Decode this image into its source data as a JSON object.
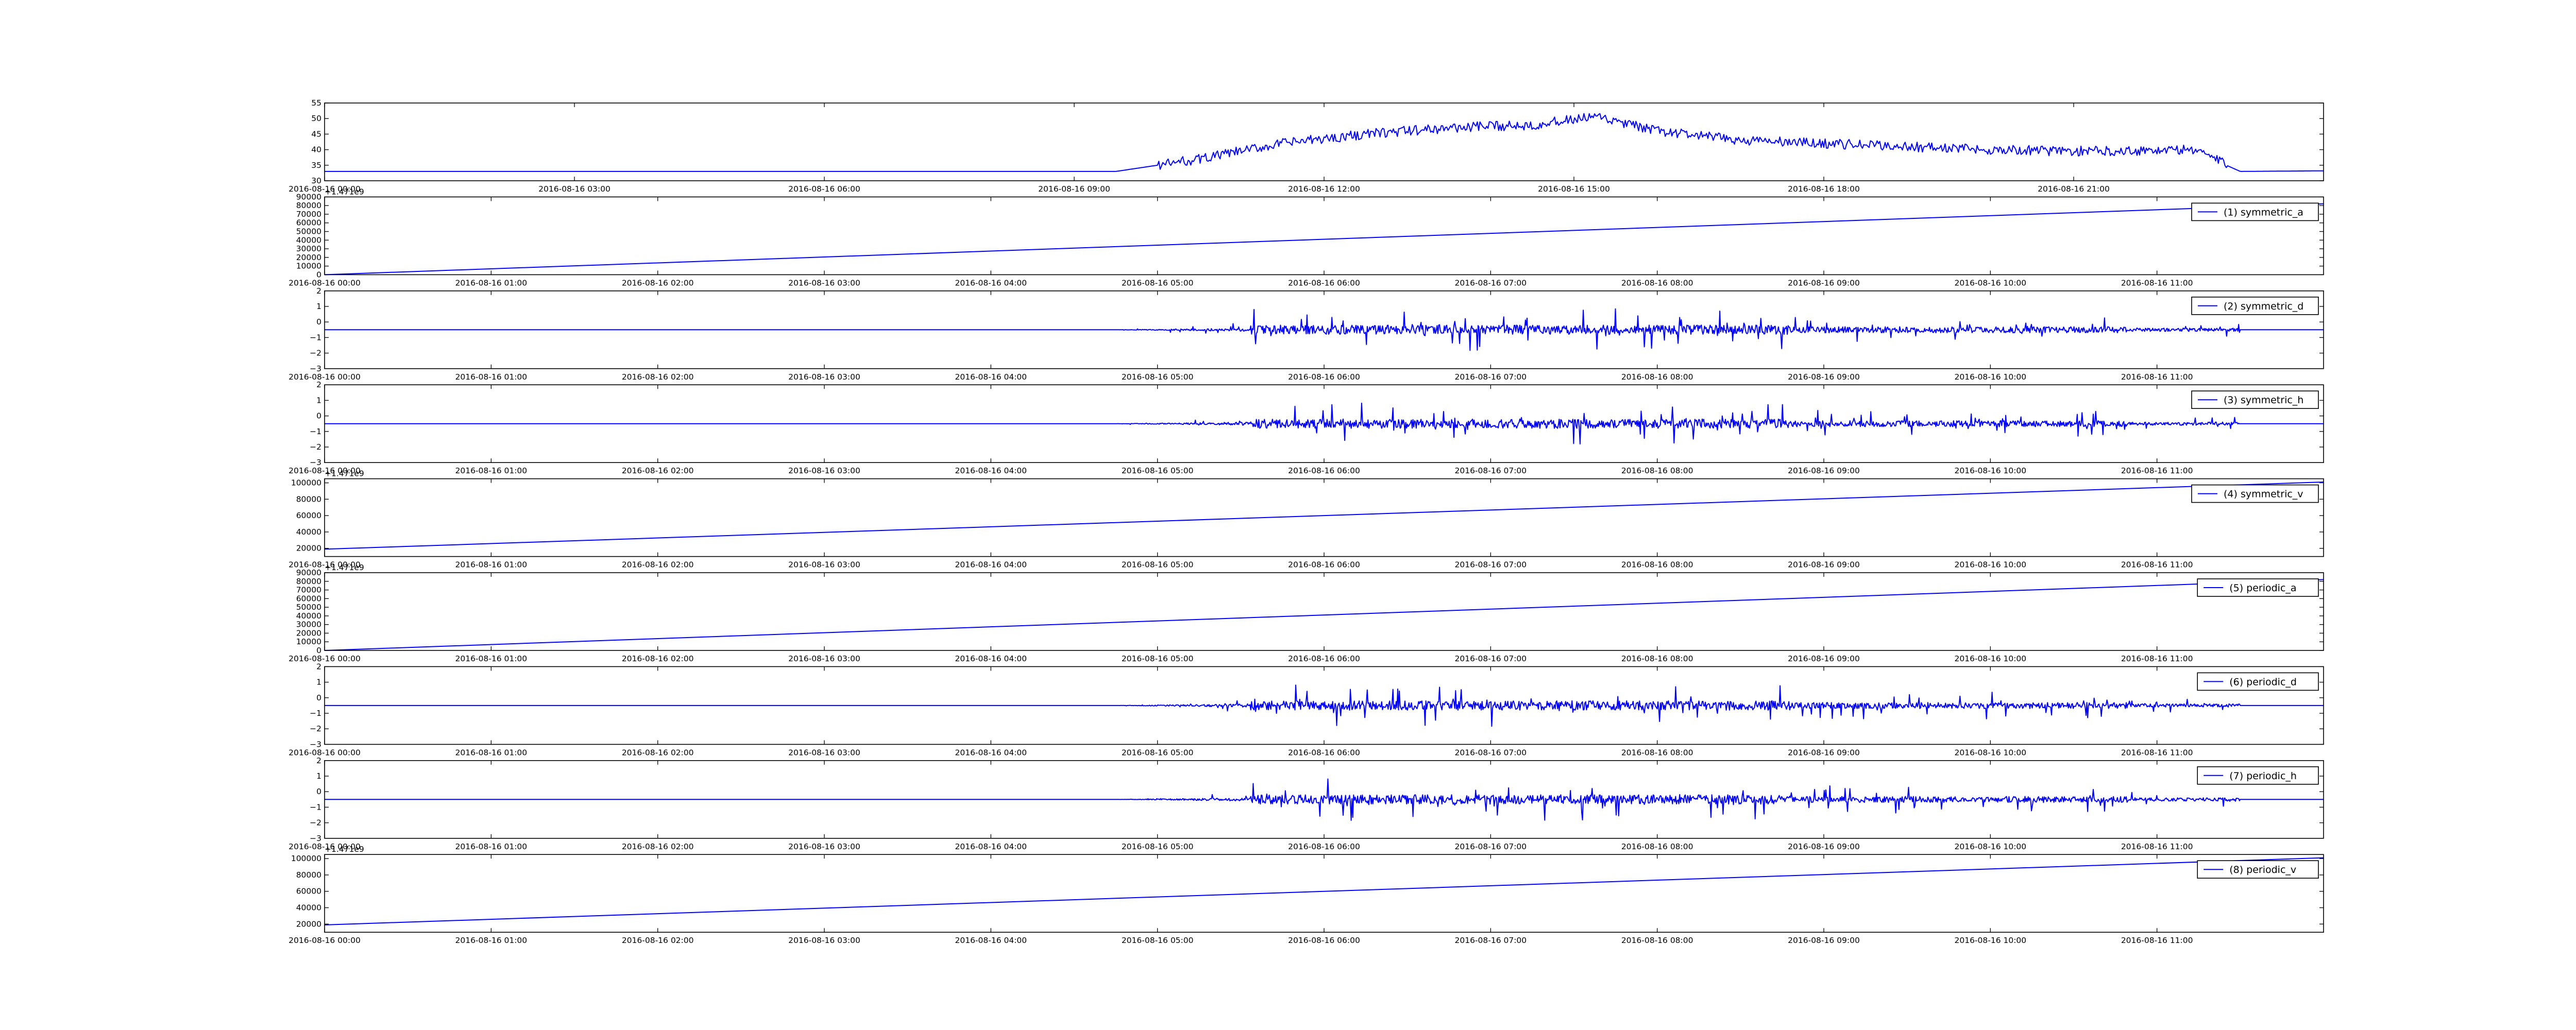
{
  "chart_data": [
    {
      "type": "line",
      "xlim": [
        "2016-08-16 00:00",
        "2016-08-17 00:00"
      ],
      "ylim": [
        30,
        55
      ],
      "yticks": [
        "30",
        "35",
        "40",
        "45",
        "50",
        "55"
      ],
      "xticks": [
        "2016-08-16 00:00",
        "2016-08-16 03:00",
        "2016-08-16 06:00",
        "2016-08-16 09:00",
        "2016-08-16 12:00",
        "2016-08-16 15:00",
        "2016-08-16 18:00",
        "2016-08-16 21:00"
      ],
      "legend": "",
      "offset_text": "",
      "pattern": "temp",
      "series": [
        {
          "values": [
            {
              "x": "2016-08-16 00:00",
              "y": 33.0
            },
            {
              "x": "2016-08-16 09:30",
              "y": 33.0
            },
            {
              "x": "2016-08-16 10:30",
              "y": 37.0
            },
            {
              "x": "2016-08-16 11:30",
              "y": 42.0
            },
            {
              "x": "2016-08-16 12:30",
              "y": 45.0
            },
            {
              "x": "2016-08-16 13:30",
              "y": 47.0
            },
            {
              "x": "2016-08-16 14:30",
              "y": 48.0
            },
            {
              "x": "2016-08-16 15:15",
              "y": 50.5
            },
            {
              "x": "2016-08-16 16:00",
              "y": 46.0
            },
            {
              "x": "2016-08-16 17:00",
              "y": 43.0
            },
            {
              "x": "2016-08-16 18:00",
              "y": 42.0
            },
            {
              "x": "2016-08-16 19:00",
              "y": 41.0
            },
            {
              "x": "2016-08-16 20:00",
              "y": 40.0
            },
            {
              "x": "2016-08-16 21:00",
              "y": 39.5
            },
            {
              "x": "2016-08-16 22:30",
              "y": 40.0
            },
            {
              "x": "2016-08-16 22:50",
              "y": 35.0
            },
            {
              "x": "2016-08-16 23:00",
              "y": 33.0
            },
            {
              "x": "2016-08-17 00:00",
              "y": 33.2
            }
          ]
        }
      ]
    },
    {
      "type": "line",
      "xlim": [
        "2016-08-16 00:00",
        "2016-08-16 12:00"
      ],
      "ylim": [
        0,
        90000
      ],
      "yticks": [
        "0",
        "10000",
        "20000",
        "30000",
        "40000",
        "50000",
        "60000",
        "70000",
        "80000",
        "90000"
      ],
      "xticks": [
        "2016-08-16 00:00",
        "2016-08-16 01:00",
        "2016-08-16 02:00",
        "2016-08-16 03:00",
        "2016-08-16 04:00",
        "2016-08-16 05:00",
        "2016-08-16 06:00",
        "2016-08-16 07:00",
        "2016-08-16 08:00",
        "2016-08-16 09:00",
        "2016-08-16 10:00",
        "2016-08-16 11:00"
      ],
      "legend": "(1) symmetric_a",
      "offset_text": "+1.471e9",
      "pattern": "linear",
      "series": [
        {
          "values": [
            {
              "x": "2016-08-16 00:00",
              "y": 0
            },
            {
              "x": "2016-08-16 12:00",
              "y": 82000
            }
          ]
        }
      ]
    },
    {
      "type": "line",
      "xlim": [
        "2016-08-16 00:00",
        "2016-08-16 12:00"
      ],
      "ylim": [
        -3,
        2
      ],
      "yticks": [
        "−3",
        "−2",
        "−1",
        "0",
        "1",
        "2"
      ],
      "xticks": [
        "2016-08-16 00:00",
        "2016-08-16 01:00",
        "2016-08-16 02:00",
        "2016-08-16 03:00",
        "2016-08-16 04:00",
        "2016-08-16 05:00",
        "2016-08-16 06:00",
        "2016-08-16 07:00",
        "2016-08-16 08:00",
        "2016-08-16 09:00",
        "2016-08-16 10:00",
        "2016-08-16 11:00"
      ],
      "legend": "(2) symmetric_d",
      "offset_text": "",
      "pattern": "noise",
      "noise": {
        "base": -0.5,
        "start": "2016-08-16 04:45",
        "end": "2016-08-16 11:30",
        "amp": 1.6
      },
      "series": [
        {
          "values": [
            {
              "x": "2016-08-16 00:00",
              "y": -0.5
            },
            {
              "x": "2016-08-16 12:00",
              "y": -0.5
            }
          ]
        }
      ]
    },
    {
      "type": "line",
      "xlim": [
        "2016-08-16 00:00",
        "2016-08-16 12:00"
      ],
      "ylim": [
        -3,
        2
      ],
      "yticks": [
        "−3",
        "−2",
        "−1",
        "0",
        "1",
        "2"
      ],
      "xticks": [
        "2016-08-16 00:00",
        "2016-08-16 01:00",
        "2016-08-16 02:00",
        "2016-08-16 03:00",
        "2016-08-16 04:00",
        "2016-08-16 05:00",
        "2016-08-16 06:00",
        "2016-08-16 07:00",
        "2016-08-16 08:00",
        "2016-08-16 09:00",
        "2016-08-16 10:00",
        "2016-08-16 11:00"
      ],
      "legend": "(3) symmetric_h",
      "offset_text": "",
      "pattern": "noise",
      "noise": {
        "base": -0.5,
        "start": "2016-08-16 04:45",
        "end": "2016-08-16 11:30",
        "amp": 1.6
      },
      "series": [
        {
          "values": [
            {
              "x": "2016-08-16 00:00",
              "y": -0.5
            },
            {
              "x": "2016-08-16 12:00",
              "y": -0.5
            }
          ]
        }
      ]
    },
    {
      "type": "line",
      "xlim": [
        "2016-08-16 00:00",
        "2016-08-16 12:00"
      ],
      "ylim": [
        10000,
        105000
      ],
      "yticks": [
        "20000",
        "40000",
        "60000",
        "80000",
        "100000"
      ],
      "xticks": [
        "2016-08-16 00:00",
        "2016-08-16 01:00",
        "2016-08-16 02:00",
        "2016-08-16 03:00",
        "2016-08-16 04:00",
        "2016-08-16 05:00",
        "2016-08-16 06:00",
        "2016-08-16 07:00",
        "2016-08-16 08:00",
        "2016-08-16 09:00",
        "2016-08-16 10:00",
        "2016-08-16 11:00"
      ],
      "legend": "(4) symmetric_v",
      "offset_text": "+1.471e9",
      "pattern": "linear",
      "series": [
        {
          "values": [
            {
              "x": "2016-08-16 00:00",
              "y": 19000
            },
            {
              "x": "2016-08-16 12:00",
              "y": 101000
            }
          ]
        }
      ]
    },
    {
      "type": "line",
      "xlim": [
        "2016-08-16 00:00",
        "2016-08-16 12:00"
      ],
      "ylim": [
        0,
        90000
      ],
      "yticks": [
        "0",
        "10000",
        "20000",
        "30000",
        "40000",
        "50000",
        "60000",
        "70000",
        "80000",
        "90000"
      ],
      "xticks": [
        "2016-08-16 00:00",
        "2016-08-16 01:00",
        "2016-08-16 02:00",
        "2016-08-16 03:00",
        "2016-08-16 04:00",
        "2016-08-16 05:00",
        "2016-08-16 06:00",
        "2016-08-16 07:00",
        "2016-08-16 08:00",
        "2016-08-16 09:00",
        "2016-08-16 10:00",
        "2016-08-16 11:00"
      ],
      "legend": "(5) periodic_a",
      "offset_text": "+1.471e9",
      "pattern": "linear",
      "series": [
        {
          "values": [
            {
              "x": "2016-08-16 00:00",
              "y": 0
            },
            {
              "x": "2016-08-16 12:00",
              "y": 82000
            }
          ]
        }
      ]
    },
    {
      "type": "line",
      "xlim": [
        "2016-08-16 00:00",
        "2016-08-16 12:00"
      ],
      "ylim": [
        -3,
        2
      ],
      "yticks": [
        "−3",
        "−2",
        "−1",
        "0",
        "1",
        "2"
      ],
      "xticks": [
        "2016-08-16 00:00",
        "2016-08-16 01:00",
        "2016-08-16 02:00",
        "2016-08-16 03:00",
        "2016-08-16 04:00",
        "2016-08-16 05:00",
        "2016-08-16 06:00",
        "2016-08-16 07:00",
        "2016-08-16 08:00",
        "2016-08-16 09:00",
        "2016-08-16 10:00",
        "2016-08-16 11:00"
      ],
      "legend": "(6) periodic_d",
      "offset_text": "",
      "pattern": "noise",
      "noise": {
        "base": -0.5,
        "start": "2016-08-16 04:45",
        "end": "2016-08-16 11:30",
        "amp": 1.6
      },
      "series": [
        {
          "values": [
            {
              "x": "2016-08-16 00:00",
              "y": -0.5
            },
            {
              "x": "2016-08-16 12:00",
              "y": -0.5
            }
          ]
        }
      ]
    },
    {
      "type": "line",
      "xlim": [
        "2016-08-16 00:00",
        "2016-08-16 12:00"
      ],
      "ylim": [
        -3,
        2
      ],
      "yticks": [
        "−3",
        "−2",
        "−1",
        "0",
        "1",
        "2"
      ],
      "xticks": [
        "2016-08-16 00:00",
        "2016-08-16 01:00",
        "2016-08-16 02:00",
        "2016-08-16 03:00",
        "2016-08-16 04:00",
        "2016-08-16 05:00",
        "2016-08-16 06:00",
        "2016-08-16 07:00",
        "2016-08-16 08:00",
        "2016-08-16 09:00",
        "2016-08-16 10:00",
        "2016-08-16 11:00"
      ],
      "legend": "(7) periodic_h",
      "offset_text": "",
      "pattern": "noise",
      "noise": {
        "base": -0.5,
        "start": "2016-08-16 04:45",
        "end": "2016-08-16 11:30",
        "amp": 1.6
      },
      "series": [
        {
          "values": [
            {
              "x": "2016-08-16 00:00",
              "y": -0.5
            },
            {
              "x": "2016-08-16 12:00",
              "y": -0.5
            }
          ]
        }
      ]
    },
    {
      "type": "line",
      "xlim": [
        "2016-08-16 00:00",
        "2016-08-16 12:00"
      ],
      "ylim": [
        10000,
        105000
      ],
      "yticks": [
        "20000",
        "40000",
        "60000",
        "80000",
        "100000"
      ],
      "xticks": [
        "2016-08-16 00:00",
        "2016-08-16 01:00",
        "2016-08-16 02:00",
        "2016-08-16 03:00",
        "2016-08-16 04:00",
        "2016-08-16 05:00",
        "2016-08-16 06:00",
        "2016-08-16 07:00",
        "2016-08-16 08:00",
        "2016-08-16 09:00",
        "2016-08-16 10:00",
        "2016-08-16 11:00"
      ],
      "legend": "(8) periodic_v",
      "offset_text": "+1.471e9",
      "pattern": "linear",
      "series": [
        {
          "values": [
            {
              "x": "2016-08-16 00:00",
              "y": 19000
            },
            {
              "x": "2016-08-16 12:00",
              "y": 101000
            }
          ]
        }
      ]
    }
  ],
  "colors": {
    "series": "#0000ff",
    "axes": "#000000",
    "background": "#ffffff"
  }
}
